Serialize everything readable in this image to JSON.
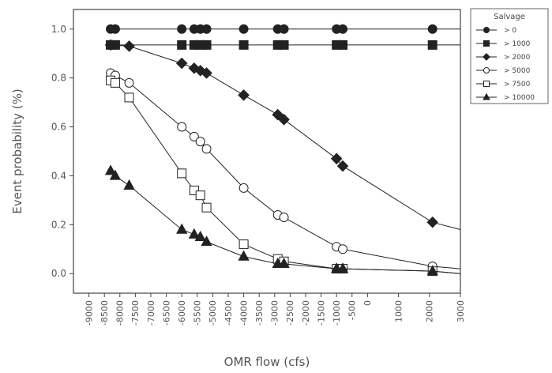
{
  "chart_data": {
    "type": "line",
    "title": "",
    "xlabel": "OMR flow (cfs)",
    "ylabel": "Event probability (%)",
    "xlim": [
      -9500,
      3000
    ],
    "ylim": [
      -0.08,
      1.08
    ],
    "x_ticks": [
      -9000,
      -8500,
      -8000,
      -7500,
      -7000,
      -6500,
      -6000,
      -5500,
      -5000,
      -4500,
      -4000,
      -3500,
      -3000,
      -2500,
      -2000,
      -1500,
      -1000,
      -500,
      0,
      1000,
      2000,
      3000
    ],
    "x_tick_labels": [
      "-9000",
      "-8500",
      "-8000",
      "-7500",
      "-7000",
      "-6500",
      "-6000",
      "-5500",
      "-5000",
      "-4500",
      "-4000",
      "-3500",
      "-3000",
      "-2500",
      "-2000",
      "-1500",
      "-1000",
      "-500",
      "0",
      "1000",
      "2000",
      "3000"
    ],
    "y_ticks": [
      0.0,
      0.2,
      0.4,
      0.6,
      0.8,
      1.0
    ],
    "y_tick_labels": [
      "0.0",
      "0.2",
      "0.4",
      "0.6",
      "0.8",
      "1.0"
    ],
    "grid": false,
    "legend": {
      "title": "Salvage",
      "position": "outside-right"
    },
    "series": [
      {
        "name": "> 0",
        "marker": "circle",
        "filled": true,
        "color": "#222222",
        "points": [
          [
            -8300,
            1.0
          ],
          [
            -8150,
            1.0
          ],
          [
            -6000,
            1.0
          ],
          [
            -5600,
            1.0
          ],
          [
            -5400,
            1.0
          ],
          [
            -5200,
            1.0
          ],
          [
            -4000,
            1.0
          ],
          [
            -2900,
            1.0
          ],
          [
            -2700,
            1.0
          ],
          [
            -1000,
            1.0
          ],
          [
            -800,
            1.0
          ],
          [
            2100,
            1.0
          ]
        ],
        "line": [
          [
            -8300,
            1.0
          ],
          [
            3000,
            1.0
          ]
        ]
      },
      {
        "name": "> 1000",
        "marker": "square",
        "filled": true,
        "color": "#222222",
        "points": [
          [
            -8300,
            0.935
          ],
          [
            -8150,
            0.935
          ],
          [
            -6000,
            0.935
          ],
          [
            -5600,
            0.935
          ],
          [
            -5400,
            0.935
          ],
          [
            -5200,
            0.935
          ],
          [
            -4000,
            0.935
          ],
          [
            -2900,
            0.935
          ],
          [
            -2700,
            0.935
          ],
          [
            -1000,
            0.935
          ],
          [
            -800,
            0.935
          ],
          [
            2100,
            0.935
          ]
        ],
        "line": [
          [
            -8300,
            0.935
          ],
          [
            3000,
            0.935
          ]
        ]
      },
      {
        "name": "> 2000",
        "marker": "diamond",
        "filled": true,
        "color": "#222222",
        "points": [
          [
            -8300,
            0.935
          ],
          [
            -7700,
            0.93
          ],
          [
            -6000,
            0.86
          ],
          [
            -5600,
            0.84
          ],
          [
            -5400,
            0.83
          ],
          [
            -5200,
            0.82
          ],
          [
            -4000,
            0.73
          ],
          [
            -2900,
            0.65
          ],
          [
            -2700,
            0.63
          ],
          [
            -1000,
            0.47
          ],
          [
            -800,
            0.44
          ],
          [
            2100,
            0.21
          ]
        ],
        "line": [
          [
            -8300,
            0.935
          ],
          [
            -7700,
            0.93
          ],
          [
            -6000,
            0.86
          ],
          [
            -5600,
            0.84
          ],
          [
            -5400,
            0.83
          ],
          [
            -5200,
            0.82
          ],
          [
            -4000,
            0.73
          ],
          [
            -2900,
            0.65
          ],
          [
            -2700,
            0.63
          ],
          [
            -1000,
            0.47
          ],
          [
            -800,
            0.44
          ],
          [
            2100,
            0.21
          ],
          [
            3000,
            0.18
          ]
        ]
      },
      {
        "name": "> 5000",
        "marker": "circle",
        "filled": false,
        "color": "#222222",
        "points": [
          [
            -8300,
            0.82
          ],
          [
            -8150,
            0.81
          ],
          [
            -7700,
            0.78
          ],
          [
            -6000,
            0.6
          ],
          [
            -5600,
            0.56
          ],
          [
            -5400,
            0.54
          ],
          [
            -5200,
            0.51
          ],
          [
            -4000,
            0.35
          ],
          [
            -2900,
            0.24
          ],
          [
            -2700,
            0.23
          ],
          [
            -1000,
            0.11
          ],
          [
            -800,
            0.1
          ],
          [
            2100,
            0.03
          ]
        ],
        "line": [
          [
            -8300,
            0.82
          ],
          [
            -8150,
            0.81
          ],
          [
            -7700,
            0.78
          ],
          [
            -6000,
            0.6
          ],
          [
            -5600,
            0.56
          ],
          [
            -5400,
            0.54
          ],
          [
            -5200,
            0.51
          ],
          [
            -4000,
            0.35
          ],
          [
            -2900,
            0.24
          ],
          [
            -2700,
            0.23
          ],
          [
            -1000,
            0.11
          ],
          [
            -800,
            0.1
          ],
          [
            2100,
            0.03
          ],
          [
            3000,
            0.02
          ]
        ]
      },
      {
        "name": "> 7500",
        "marker": "square",
        "filled": false,
        "color": "#222222",
        "points": [
          [
            -8300,
            0.79
          ],
          [
            -8150,
            0.78
          ],
          [
            -7700,
            0.72
          ],
          [
            -6000,
            0.41
          ],
          [
            -5600,
            0.34
          ],
          [
            -5400,
            0.32
          ],
          [
            -5200,
            0.27
          ],
          [
            -4000,
            0.12
          ],
          [
            -2900,
            0.06
          ],
          [
            -2700,
            0.05
          ],
          [
            -1000,
            0.02
          ],
          [
            -800,
            0.02
          ],
          [
            2100,
            0.01
          ]
        ],
        "line": [
          [
            -8300,
            0.79
          ],
          [
            -8150,
            0.78
          ],
          [
            -7700,
            0.72
          ],
          [
            -6000,
            0.41
          ],
          [
            -5600,
            0.34
          ],
          [
            -5400,
            0.32
          ],
          [
            -5200,
            0.27
          ],
          [
            -4000,
            0.12
          ],
          [
            -2900,
            0.06
          ],
          [
            -2700,
            0.05
          ],
          [
            -1000,
            0.02
          ],
          [
            -800,
            0.02
          ],
          [
            2100,
            0.01
          ],
          [
            3000,
            0.0
          ]
        ]
      },
      {
        "name": "> 10000",
        "marker": "triangle",
        "filled": true,
        "color": "#222222",
        "points": [
          [
            -8300,
            0.42
          ],
          [
            -8150,
            0.4
          ],
          [
            -7700,
            0.36
          ],
          [
            -6000,
            0.18
          ],
          [
            -5600,
            0.16
          ],
          [
            -5400,
            0.15
          ],
          [
            -5200,
            0.13
          ],
          [
            -4000,
            0.07
          ],
          [
            -2900,
            0.04
          ],
          [
            -2700,
            0.04
          ],
          [
            -1000,
            0.02
          ],
          [
            -800,
            0.02
          ],
          [
            2100,
            0.01
          ]
        ],
        "line": [
          [
            -8300,
            0.42
          ],
          [
            -8150,
            0.4
          ],
          [
            -7700,
            0.36
          ],
          [
            -6000,
            0.18
          ],
          [
            -5600,
            0.16
          ],
          [
            -5400,
            0.15
          ],
          [
            -5200,
            0.13
          ],
          [
            -4000,
            0.07
          ],
          [
            -2900,
            0.04
          ],
          [
            -2700,
            0.04
          ],
          [
            -1000,
            0.02
          ],
          [
            -800,
            0.02
          ],
          [
            2100,
            0.01
          ],
          [
            3000,
            0.0
          ]
        ]
      }
    ]
  }
}
